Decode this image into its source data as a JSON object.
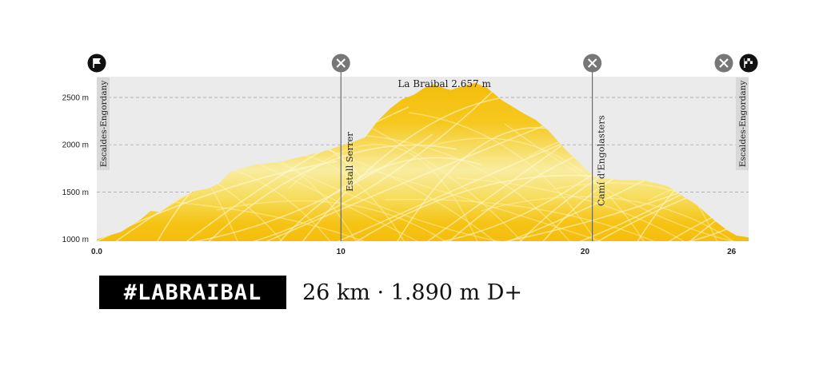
{
  "chart_data": {
    "type": "area",
    "xlim": [
      0,
      26.7
    ],
    "ylim": [
      980,
      2720
    ],
    "x_ticks": [
      {
        "value": 0,
        "label": "0.0"
      },
      {
        "value": 10,
        "label": "10"
      },
      {
        "value": 20,
        "label": "20"
      },
      {
        "value": 26,
        "label": "26"
      }
    ],
    "y_ticks": [
      {
        "value": 1000,
        "label": "1000 m"
      },
      {
        "value": 1500,
        "label": "1500 m"
      },
      {
        "value": 2000,
        "label": "2000 m"
      },
      {
        "value": 2500,
        "label": "2500 m"
      }
    ],
    "grid": true,
    "profile": [
      [
        0,
        1000
      ],
      [
        1,
        1080
      ],
      [
        1.8,
        1210
      ],
      [
        2.2,
        1300
      ],
      [
        2.6,
        1290
      ],
      [
        3.3,
        1420
      ],
      [
        4,
        1510
      ],
      [
        4.6,
        1540
      ],
      [
        5,
        1590
      ],
      [
        5.5,
        1720
      ],
      [
        6.5,
        1790
      ],
      [
        7.5,
        1820
      ],
      [
        8.5,
        1880
      ],
      [
        9.3,
        1930
      ],
      [
        10,
        1990
      ],
      [
        10.5,
        2030
      ],
      [
        11,
        2080
      ],
      [
        11.5,
        2250
      ],
      [
        12,
        2380
      ],
      [
        12.5,
        2480
      ],
      [
        13,
        2530
      ],
      [
        13.4,
        2600
      ],
      [
        13.8,
        2640
      ],
      [
        14.2,
        2600
      ],
      [
        14.5,
        2580
      ],
      [
        15,
        2620
      ],
      [
        15.5,
        2655
      ],
      [
        16,
        2600
      ],
      [
        16.6,
        2470
      ],
      [
        17.5,
        2330
      ],
      [
        18,
        2260
      ],
      [
        18.5,
        2150
      ],
      [
        19.2,
        1950
      ],
      [
        20,
        1750
      ],
      [
        20.5,
        1650
      ],
      [
        21.5,
        1630
      ],
      [
        22.5,
        1620
      ],
      [
        23.4,
        1560
      ],
      [
        24,
        1460
      ],
      [
        24.6,
        1360
      ],
      [
        25.3,
        1200
      ],
      [
        25.8,
        1100
      ],
      [
        26.2,
        1040
      ],
      [
        26.7,
        1020
      ]
    ],
    "annotations": [
      {
        "label": "La Braibal 2.657 m",
        "x": 14.5,
        "y": 2657,
        "type": "peak"
      },
      {
        "label": "Estall Serrer",
        "x": 10,
        "type": "marker-line"
      },
      {
        "label": "Camí d'Engolasters",
        "x": 20.3,
        "type": "marker-line"
      },
      {
        "label": "Escaldes-Engordany",
        "x": 0,
        "type": "endpoint"
      },
      {
        "label": "Escaldes-Engordany",
        "x": 26.7,
        "type": "endpoint"
      }
    ],
    "icons": [
      {
        "name": "start-flag-icon",
        "x": 0,
        "style": "black"
      },
      {
        "name": "food-station-icon",
        "x": 10,
        "style": "gray"
      },
      {
        "name": "food-station-icon",
        "x": 20.3,
        "style": "gray"
      },
      {
        "name": "food-station-icon",
        "x": 25.8,
        "style": "gray"
      },
      {
        "name": "finish-flag-icon",
        "x": 26.7,
        "style": "black"
      }
    ],
    "colors": {
      "fill_dark": "#f5bd0c",
      "fill_light": "#f8f0a2",
      "panel": "#ebebeb",
      "grid": "#aaaaaa"
    }
  },
  "footer": {
    "hashtag": "#LABRAIBAL",
    "stats": "26 km · 1.890 m D+"
  }
}
